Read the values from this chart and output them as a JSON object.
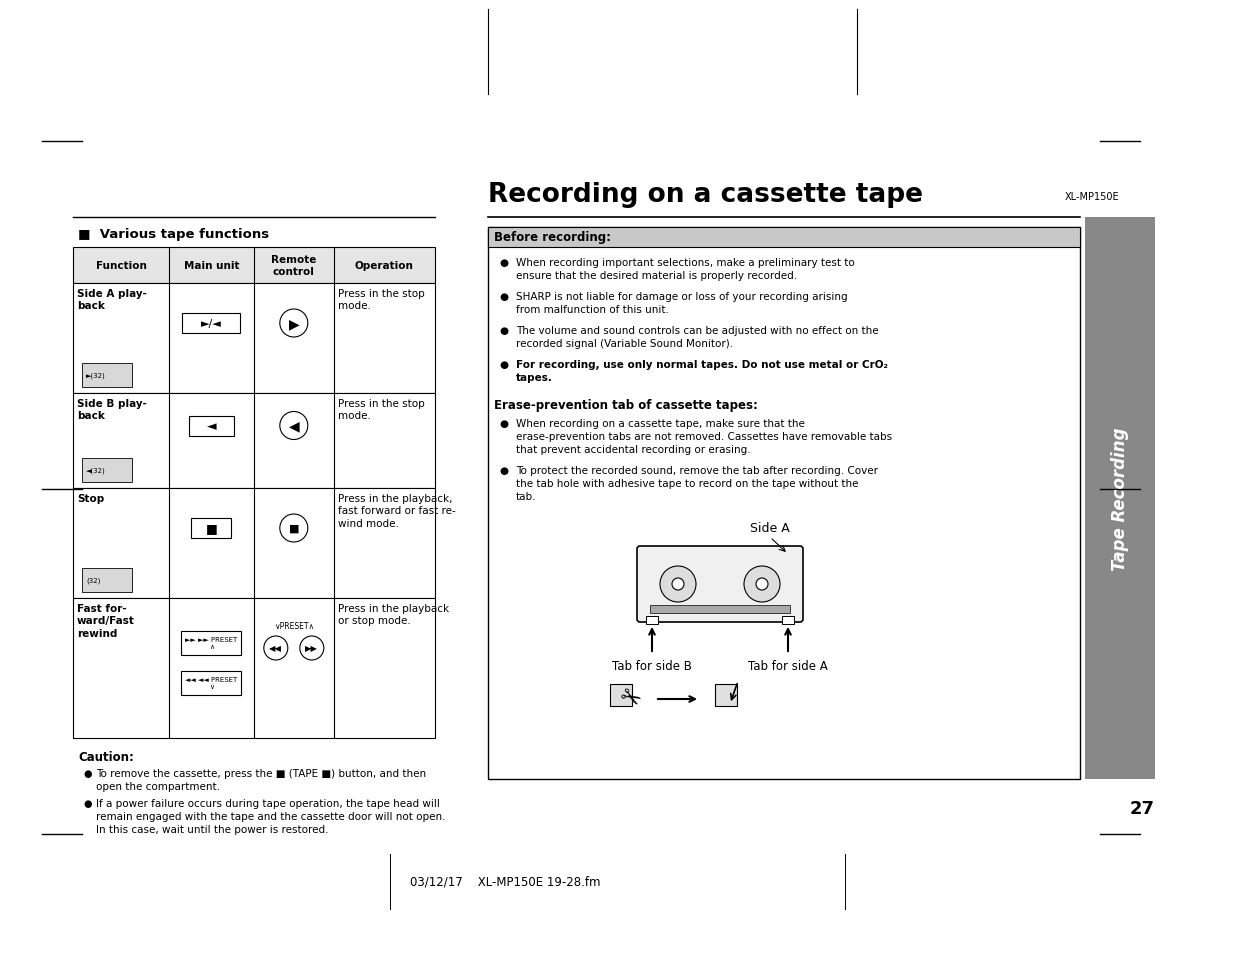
{
  "page_bg": "#ffffff",
  "title": "Recording on a cassette tape",
  "model_label": "XL-MP150E",
  "page_number": "27",
  "footer_text": "03/12/17    XL-MP150E 19-28.fm",
  "section_title": "■  Various tape functions",
  "caution_title": "Caution:",
  "caution_bullets": [
    "To remove the cassette, press the ■ (TAPE ■) button, and then\nopen the compartment.",
    "If a power failure occurs during tape operation, the tape head will\nremain engaged with the tape and the cassette door will not open.\nIn this case, wait until the power is restored."
  ],
  "before_recording_title": "Before recording:",
  "before_recording_bullets": [
    [
      "normal",
      "When recording important selections, make a preliminary test to ensure that the desired material is properly recorded."
    ],
    [
      "normal",
      "SHARP is not liable for damage or loss of your recording arising from malfunction of this unit."
    ],
    [
      "normal",
      "The volume and sound controls can be adjusted with no effect on the recorded signal (Variable Sound Monitor)."
    ],
    [
      "bold",
      "For recording, use only normal tapes. Do not use metal or CrO₂ tapes."
    ]
  ],
  "erase_title": "Erase-prevention tab of cassette tapes:",
  "erase_bullets": [
    "When recording on a cassette tape, make sure that the erase-prevention tabs are not removed. Cassettes have removable tabs that prevent accidental recording or erasing.",
    "To protect the recorded sound, remove the tab after recording. Cover the tab hole with adhesive tape to record on the tape without the tab."
  ],
  "side_a_label": "Side A",
  "tab_b_label": "Tab for side B",
  "tab_a_label": "Tab for side A",
  "tape_recording_sidebar": "Tape Recording",
  "functions": [
    "Side A play-\nback",
    "Side B play-\nback",
    "Stop",
    "Fast for-\nward/Fast\nrewind"
  ],
  "operations": [
    "Press in the stop\nmode.",
    "Press in the stop\nmode.",
    "Press in the playback,\nfast forward or fast re-\nwind mode.",
    "Press in the playback\nor stop mode."
  ]
}
